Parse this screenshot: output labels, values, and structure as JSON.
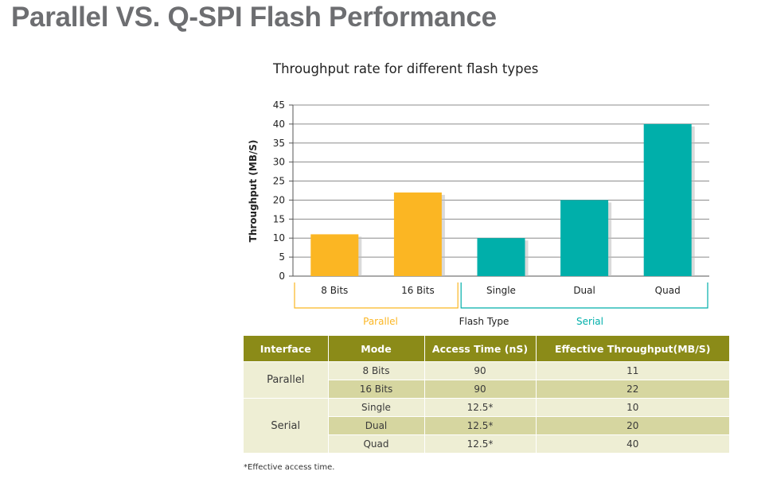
{
  "slide": {
    "title": "Parallel VS. Q-SPI Flash Performance"
  },
  "chart_data": {
    "type": "bar",
    "title": "Throughput rate for different flash types",
    "xlabel": "Flash Type",
    "ylabel": "Throughput (MB/S)",
    "ylim": [
      0,
      45
    ],
    "yticks": [
      0,
      5,
      10,
      15,
      20,
      25,
      30,
      35,
      40,
      45
    ],
    "grid": true,
    "categories": [
      "8 Bits",
      "16 Bits",
      "Single",
      "Dual",
      "Quad"
    ],
    "values": [
      11,
      22,
      10,
      20,
      40
    ],
    "groups": [
      {
        "name": "Parallel",
        "categories": [
          "8 Bits",
          "16 Bits"
        ],
        "color": "#fbb623"
      },
      {
        "name": "Serial",
        "categories": [
          "Single",
          "Dual",
          "Quad"
        ],
        "color": "#00afaa"
      }
    ]
  },
  "table": {
    "headers": [
      "Interface",
      "Mode",
      "Access Time (nS)",
      "Effective Throughput(MB/S)"
    ],
    "groups": [
      {
        "interface": "Parallel",
        "rows": [
          {
            "mode": "8 Bits",
            "access": "90",
            "throughput": "11"
          },
          {
            "mode": "16 Bits",
            "access": "90",
            "throughput": "22"
          }
        ]
      },
      {
        "interface": "Serial",
        "rows": [
          {
            "mode": "Single",
            "access": "12.5*",
            "throughput": "10"
          },
          {
            "mode": "Dual",
            "access": "12.5*",
            "throughput": "20"
          },
          {
            "mode": "Quad",
            "access": "12.5*",
            "throughput": "40"
          }
        ]
      }
    ]
  },
  "footnote": "*Effective access time."
}
